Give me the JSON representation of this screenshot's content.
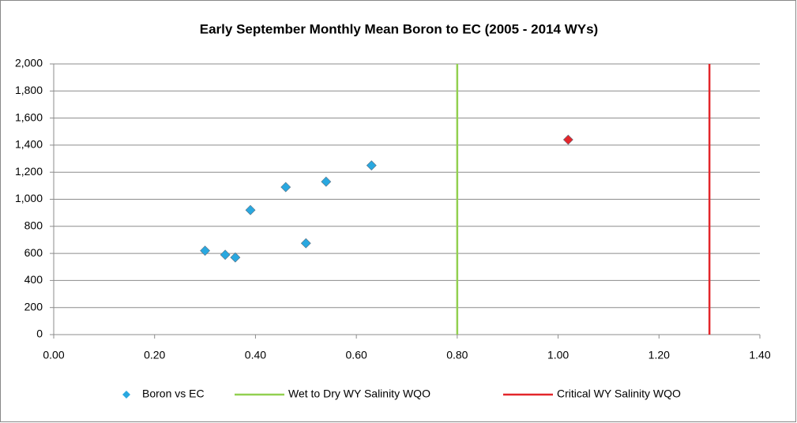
{
  "chart_data": {
    "type": "scatter",
    "title": "Early September Monthly Mean Boron to EC (2005 - 2014 WYs)",
    "xlim": [
      0,
      1.4
    ],
    "xticks": [
      {
        "value": 0,
        "label": "0.00"
      },
      {
        "value": 0.2,
        "label": "0.20"
      },
      {
        "value": 0.4,
        "label": "0.40"
      },
      {
        "value": 0.6,
        "label": "0.60"
      },
      {
        "value": 0.8,
        "label": "0.80"
      },
      {
        "value": 1.0,
        "label": "1.00"
      },
      {
        "value": 1.2,
        "label": "1.20"
      },
      {
        "value": 1.4,
        "label": "1.40"
      }
    ],
    "ylim": [
      0,
      2000
    ],
    "yticks": [
      0,
      200,
      400,
      600,
      800,
      {
        "value": 1000,
        "label": "1,000"
      },
      {
        "value": 1200,
        "label": "1,200"
      },
      {
        "value": 1400,
        "label": "1,400"
      },
      {
        "value": 1600,
        "label": "1,600"
      },
      {
        "value": 1800,
        "label": "1,800"
      },
      {
        "value": 2000,
        "label": "2,000"
      }
    ],
    "grid": true,
    "legend": "bottom",
    "series": [
      {
        "name": "Boron vs EC",
        "color": "#29a8e0",
        "x": [
          0.3,
          0.34,
          0.36,
          0.39,
          0.46,
          0.5,
          0.54,
          0.63,
          1.02
        ],
        "values": [
          620,
          590,
          570,
          920,
          1090,
          675,
          1130,
          1250,
          1440
        ],
        "point_colors": [
          "#29a8e0",
          "#29a8e0",
          "#29a8e0",
          "#29a8e0",
          "#29a8e0",
          "#29a8e0",
          "#29a8e0",
          "#29a8e0",
          "#e3262b"
        ]
      },
      {
        "name": "Wet to Dry WY Salinity WQO",
        "color": "#92d050",
        "kind": "vline",
        "x": 0.8
      },
      {
        "name": "Critical WY Salinity WQO",
        "color": "#e3262b",
        "kind": "vline",
        "x": 1.3
      }
    ]
  }
}
